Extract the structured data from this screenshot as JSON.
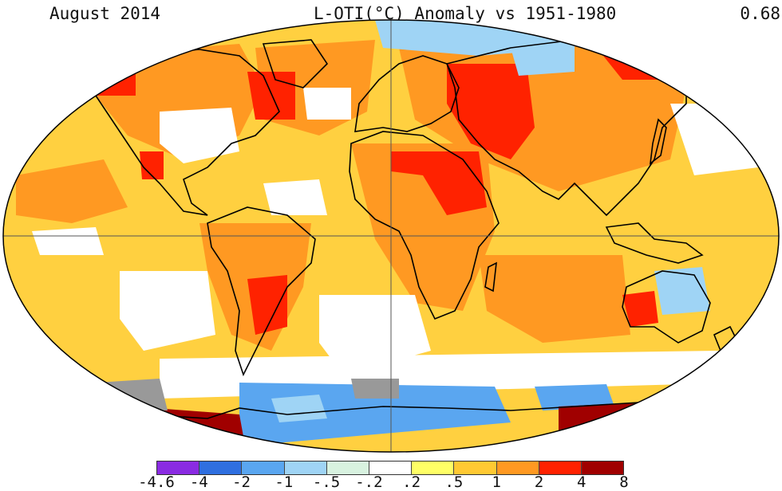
{
  "header": {
    "date": "August 2014",
    "title": "L-OTI(°C) Anomaly vs 1951-1980",
    "global_mean": "0.68"
  },
  "legend": {
    "colors": [
      "#8a2be2",
      "#2f6fe0",
      "#5aa6f0",
      "#9fd4f5",
      "#d8f2e0",
      "#ffffff",
      "#ffff66",
      "#ffc933",
      "#ff9922",
      "#ff2200",
      "#a00000"
    ],
    "ticks": [
      "-4.6",
      "-4",
      "-2",
      "-1",
      "-.5",
      "-.2",
      ".2",
      ".5",
      "1",
      "2",
      "4",
      "8"
    ]
  },
  "palette": {
    "warm_light": "#ffd040",
    "warm_mid": "#ff9922",
    "warm_hot": "#ff2200",
    "extreme": "#a00000",
    "neutral": "#ffffff",
    "cool_light": "#9fd4f5",
    "cool_mid": "#5aa6f0",
    "missing": "#999999",
    "coast": "#000000",
    "grid": "#555555"
  }
}
